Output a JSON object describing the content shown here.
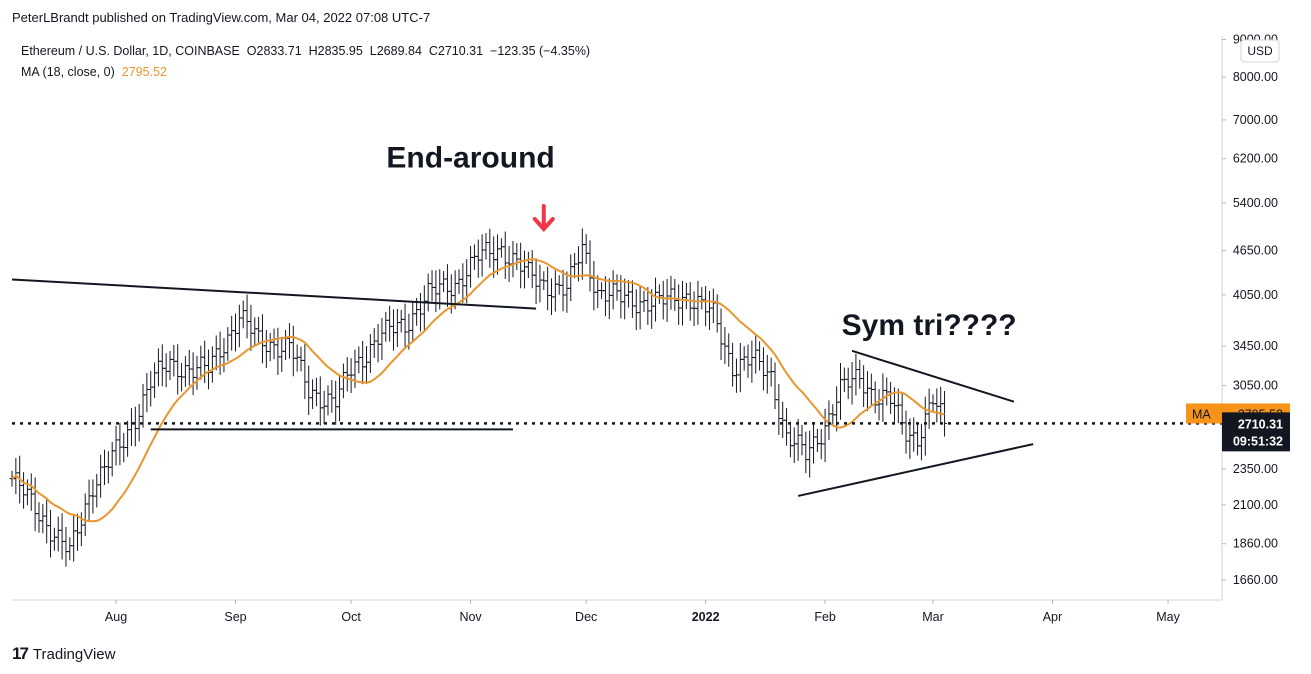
{
  "header": {
    "publisher": "PeterLBrandt published on TradingView.com, Mar 04, 2022 07:08 UTC-7",
    "symbol_line": "Ethereum / U.S. Dollar, 1D, COINBASE  O2833.71  H2835.95  L2689.84  C2710.31  −123.35 (−4.35%)",
    "ma_line": "MA (18, close, 0)",
    "ma_value": "2795.52"
  },
  "footer": {
    "logo": "17",
    "brand": "TradingView"
  },
  "colors": {
    "ma": "#e8962e",
    "bars": "#131722",
    "badge_ma": "#f7931a",
    "badge_price": "#131722"
  },
  "chart_data": {
    "type": "ohlc-bar",
    "scale": "log",
    "currency_badge": "USD",
    "x_ticks": [
      "Aug",
      "Sep",
      "Oct",
      "Nov",
      "Dec",
      "2022",
      "Feb",
      "Mar",
      "Apr",
      "May"
    ],
    "x_ticks_dates": [
      "2021-08-01",
      "2021-09-01",
      "2021-10-01",
      "2021-11-01",
      "2021-12-01",
      "2022-01-01",
      "2022-02-01",
      "2022-03-01",
      "2022-04-01",
      "2022-05-01"
    ],
    "y_ticks": [
      "1660.00",
      "1860.00",
      "2100.00",
      "2350.00",
      "2650.00",
      "3050.00",
      "3450.00",
      "4050.00",
      "4650.00",
      "5400.00",
      "6200.00",
      "7000.00",
      "8000.00",
      "9000.00"
    ],
    "ylim": [
      1560,
      9100
    ],
    "xlim": [
      "2021-07-05",
      "2022-05-15"
    ],
    "price_anchors": [
      [
        "2021-07-05",
        2280
      ],
      [
        "2021-07-12",
        2050
      ],
      [
        "2021-07-20",
        1800
      ],
      [
        "2021-07-26",
        2250
      ],
      [
        "2021-08-03",
        2550
      ],
      [
        "2021-08-10",
        3100
      ],
      [
        "2021-08-15",
        3250
      ],
      [
        "2021-08-25",
        3200
      ],
      [
        "2021-09-02",
        3800
      ],
      [
        "2021-09-07",
        3500
      ],
      [
        "2021-09-15",
        3450
      ],
      [
        "2021-09-20",
        3000
      ],
      [
        "2021-09-27",
        2900
      ],
      [
        "2021-10-01",
        3200
      ],
      [
        "2021-10-08",
        3550
      ],
      [
        "2021-10-15",
        3700
      ],
      [
        "2021-10-21",
        4050
      ],
      [
        "2021-10-28",
        4200
      ],
      [
        "2021-11-03",
        4550
      ],
      [
        "2021-11-09",
        4700
      ],
      [
        "2021-11-16",
        4300
      ],
      [
        "2021-11-20",
        4200
      ],
      [
        "2021-11-26",
        4100
      ],
      [
        "2021-11-30",
        4700
      ],
      [
        "2021-12-04",
        4100
      ],
      [
        "2021-12-10",
        4000
      ],
      [
        "2021-12-20",
        3950
      ],
      [
        "2021-12-27",
        4050
      ],
      [
        "2022-01-03",
        3800
      ],
      [
        "2022-01-08",
        3250
      ],
      [
        "2022-01-13",
        3300
      ],
      [
        "2022-01-18",
        3150
      ],
      [
        "2022-01-22",
        2600
      ],
      [
        "2022-01-27",
        2450
      ],
      [
        "2022-02-01",
        2700
      ],
      [
        "2022-02-05",
        3000
      ],
      [
        "2022-02-10",
        3150
      ],
      [
        "2022-02-14",
        2950
      ],
      [
        "2022-02-18",
        2900
      ],
      [
        "2022-02-22",
        2650
      ],
      [
        "2022-02-25",
        2600
      ],
      [
        "2022-03-01",
        2900
      ],
      [
        "2022-03-04",
        2710
      ]
    ],
    "ma_value": 2795.52,
    "last_price": 2710.31,
    "countdown": "09:51:32",
    "badge_ma_label": "MA",
    "annotations": [
      {
        "text": "End-around",
        "date": "2021-11-01",
        "price": 6030
      },
      {
        "text": "Sym tri????",
        "date": "2022-02-28",
        "price": 3570
      }
    ],
    "trendlines": [
      {
        "from": [
          "2021-07-05",
          4250
        ],
        "to": [
          "2021-11-18",
          3880
        ]
      },
      {
        "from": [
          "2021-08-10",
          2660
        ],
        "to": [
          "2021-11-12",
          2660
        ]
      },
      {
        "from": [
          "2022-02-08",
          3400
        ],
        "to": [
          "2022-03-22",
          2900
        ]
      },
      {
        "from": [
          "2022-01-25",
          2160
        ],
        "to": [
          "2022-03-27",
          2540
        ]
      }
    ],
    "marker_arrow_date": "2021-11-20"
  }
}
